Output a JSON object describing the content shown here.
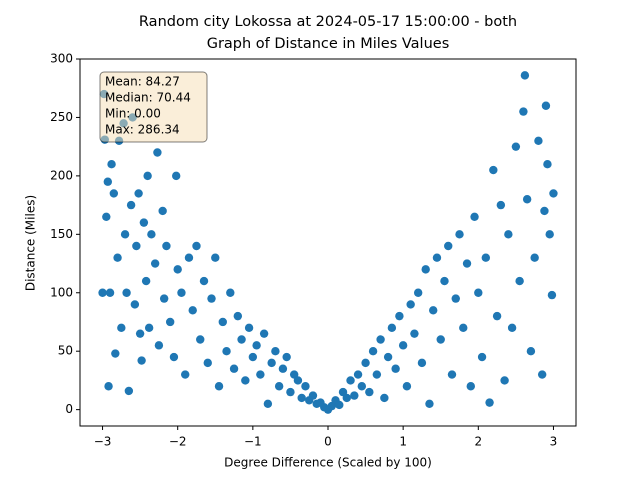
{
  "chart_data": {
    "type": "scatter",
    "title": "Random city Lokossa at 2024-05-17 15:00:00  - both",
    "subtitle": "Graph of Distance in Miles Values",
    "x_label": "Degree Difference (Scaled by 100)",
    "y_label": "Distance (Miles)",
    "annotation": [
      "Mean: 84.27",
      "Median: 70.44",
      "Min: 0.00",
      "Max: 286.34"
    ],
    "color": "#1f77b4",
    "xlim": [
      -3.3,
      3.3
    ],
    "ylim": [
      -14,
      300
    ],
    "xticks": [
      {
        "value": -3,
        "label": "−3"
      },
      {
        "value": -2,
        "label": "−2"
      },
      {
        "value": -1,
        "label": "−1"
      },
      0,
      1,
      2,
      3
    ],
    "yticks": [
      0,
      50,
      100,
      150,
      200,
      250,
      300
    ],
    "grid": false,
    "x": [
      -3.0,
      -2.98,
      -2.97,
      -2.95,
      -2.93,
      -2.92,
      -2.9,
      -2.88,
      -2.85,
      -2.83,
      -2.8,
      -2.78,
      -2.75,
      -2.72,
      -2.7,
      -2.68,
      -2.65,
      -2.62,
      -2.6,
      -2.57,
      -2.55,
      -2.52,
      -2.5,
      -2.48,
      -2.45,
      -2.42,
      -2.4,
      -2.38,
      -2.35,
      -2.3,
      -2.27,
      -2.25,
      -2.2,
      -2.18,
      -2.15,
      -2.1,
      -2.05,
      -2.02,
      -2.0,
      -1.95,
      -1.9,
      -1.85,
      -1.8,
      -1.75,
      -1.7,
      -1.65,
      -1.6,
      -1.55,
      -1.5,
      -1.45,
      -1.4,
      -1.35,
      -1.3,
      -1.25,
      -1.2,
      -1.15,
      -1.1,
      -1.05,
      -1.0,
      -0.95,
      -0.9,
      -0.85,
      -0.8,
      -0.75,
      -0.7,
      -0.65,
      -0.6,
      -0.55,
      -0.5,
      -0.45,
      -0.4,
      -0.35,
      -0.3,
      -0.25,
      -0.2,
      -0.15,
      -0.1,
      -0.05,
      0,
      0.05,
      0.1,
      0.15,
      0.2,
      0.25,
      0.3,
      0.35,
      0.4,
      0.45,
      0.5,
      0.55,
      0.6,
      0.65,
      0.7,
      0.75,
      0.8,
      0.85,
      0.9,
      0.95,
      1.0,
      1.05,
      1.1,
      1.15,
      1.2,
      1.25,
      1.3,
      1.35,
      1.4,
      1.45,
      1.5,
      1.55,
      1.6,
      1.65,
      1.7,
      1.75,
      1.8,
      1.85,
      1.9,
      1.95,
      2.0,
      2.05,
      2.1,
      2.15,
      2.2,
      2.25,
      2.3,
      2.35,
      2.4,
      2.45,
      2.5,
      2.55,
      2.6,
      2.62,
      2.65,
      2.7,
      2.75,
      2.8,
      2.85,
      2.88,
      2.9,
      2.92,
      2.95,
      2.98,
      3.0
    ],
    "values": [
      100,
      270,
      231,
      165,
      195,
      20,
      100,
      210,
      185,
      48,
      130,
      230,
      70,
      245,
      150,
      100,
      16,
      175,
      250,
      90,
      140,
      185,
      65,
      42,
      160,
      110,
      200,
      70,
      150,
      125,
      220,
      55,
      170,
      95,
      140,
      75,
      45,
      200,
      120,
      100,
      30,
      130,
      85,
      140,
      60,
      110,
      40,
      95,
      130,
      20,
      75,
      50,
      100,
      35,
      80,
      60,
      25,
      70,
      45,
      55,
      30,
      65,
      5,
      40,
      50,
      20,
      35,
      45,
      15,
      30,
      25,
      10,
      20,
      8,
      12,
      5,
      6,
      2,
      0,
      3,
      8,
      4,
      15,
      10,
      25,
      12,
      30,
      20,
      40,
      15,
      50,
      30,
      60,
      10,
      45,
      70,
      35,
      80,
      55,
      20,
      90,
      65,
      100,
      40,
      120,
      5,
      85,
      130,
      60,
      110,
      140,
      30,
      95,
      150,
      70,
      125,
      20,
      165,
      100,
      45,
      130,
      6,
      205,
      80,
      175,
      25,
      150,
      70,
      225,
      110,
      255,
      286,
      180,
      50,
      130,
      230,
      30,
      170,
      260,
      210,
      150,
      98,
      185
    ]
  }
}
